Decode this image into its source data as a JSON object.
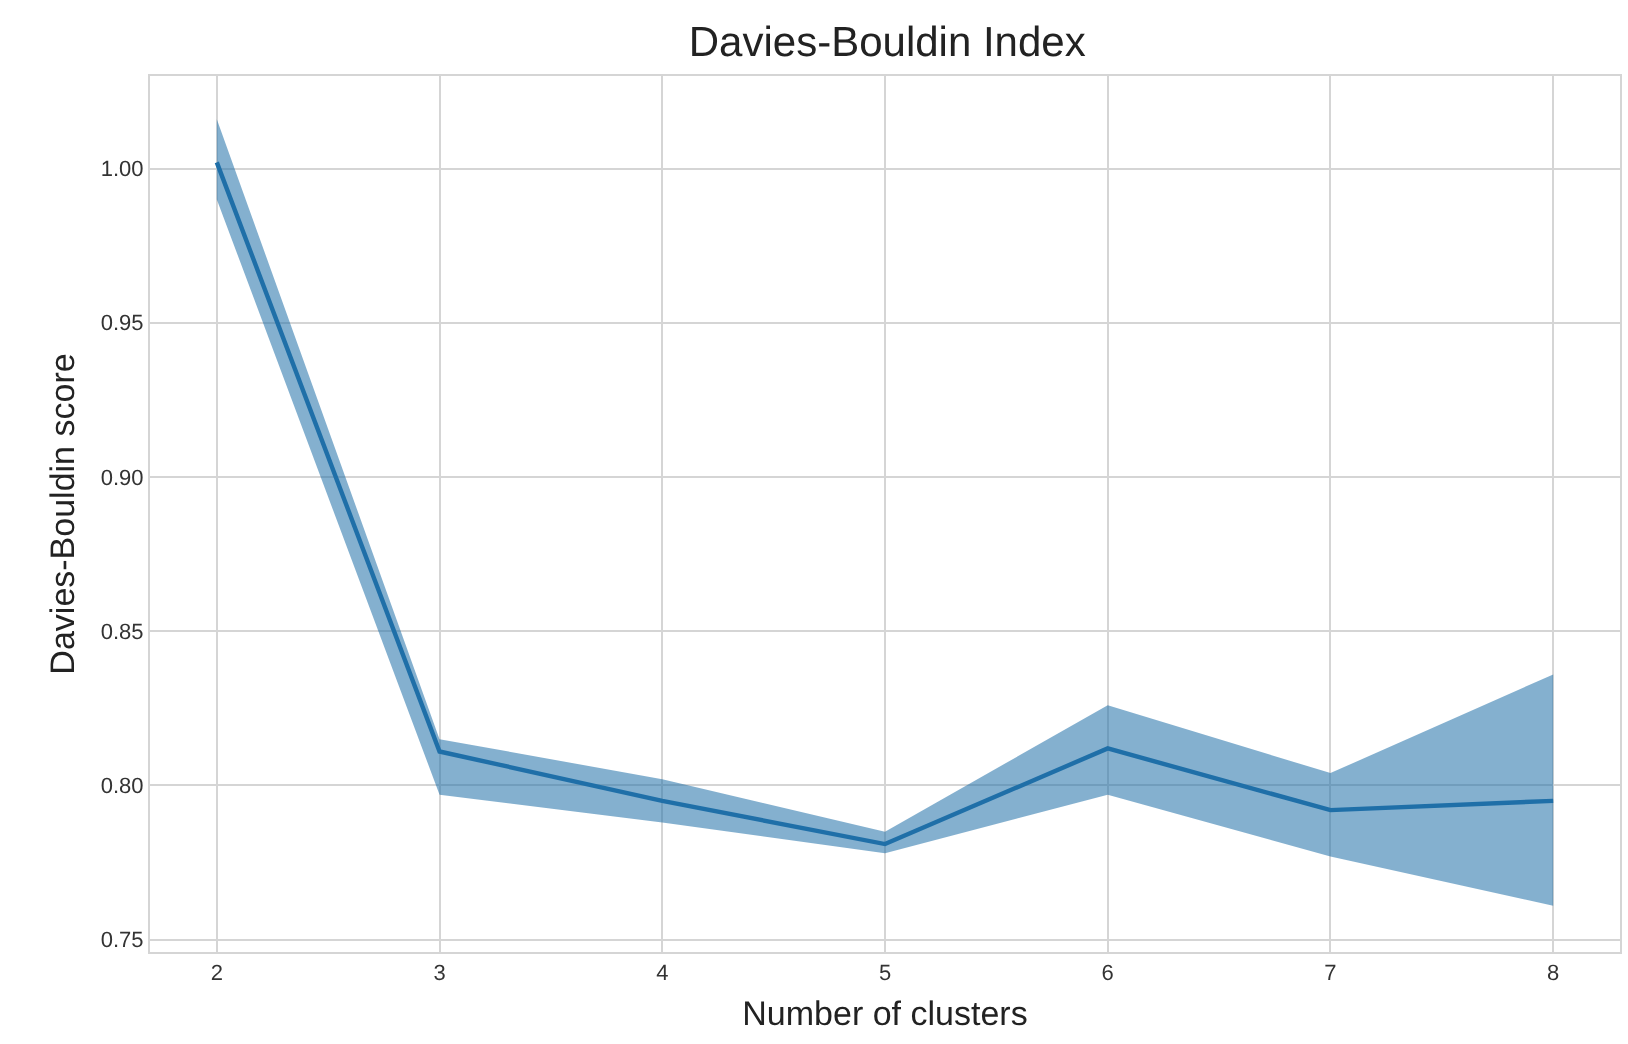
{
  "chart_data": {
    "type": "line",
    "title": "Davies-Bouldin Index",
    "xlabel": "Number of clusters",
    "ylabel": "Davies-Bouldin score",
    "x": [
      2,
      3,
      4,
      5,
      6,
      7,
      8
    ],
    "series": [
      {
        "color": "#1f6fa8",
        "values": [
          1.002,
          0.811,
          0.795,
          0.781,
          0.812,
          0.792,
          0.795
        ],
        "lower": [
          0.99,
          0.797,
          0.788,
          0.778,
          0.797,
          0.777,
          0.761
        ],
        "upper": [
          1.016,
          0.815,
          0.802,
          0.785,
          0.826,
          0.804,
          0.836
        ]
      }
    ],
    "xlim": [
      1.7,
      8.3
    ],
    "xticks": [
      2,
      3,
      4,
      5,
      6,
      7,
      8
    ],
    "ylim": [
      0.746,
      1.03
    ],
    "yticks": [
      {
        "value": 0.75,
        "label": "0.75"
      },
      {
        "value": 0.8,
        "label": "0.80"
      },
      {
        "value": 0.85,
        "label": "0.85"
      },
      {
        "value": 0.9,
        "label": "0.90"
      },
      {
        "value": 0.95,
        "label": "0.95"
      },
      {
        "value": 1.0,
        "label": "1.00"
      }
    ],
    "grid": true,
    "marker": "none",
    "line_style": "solid"
  }
}
